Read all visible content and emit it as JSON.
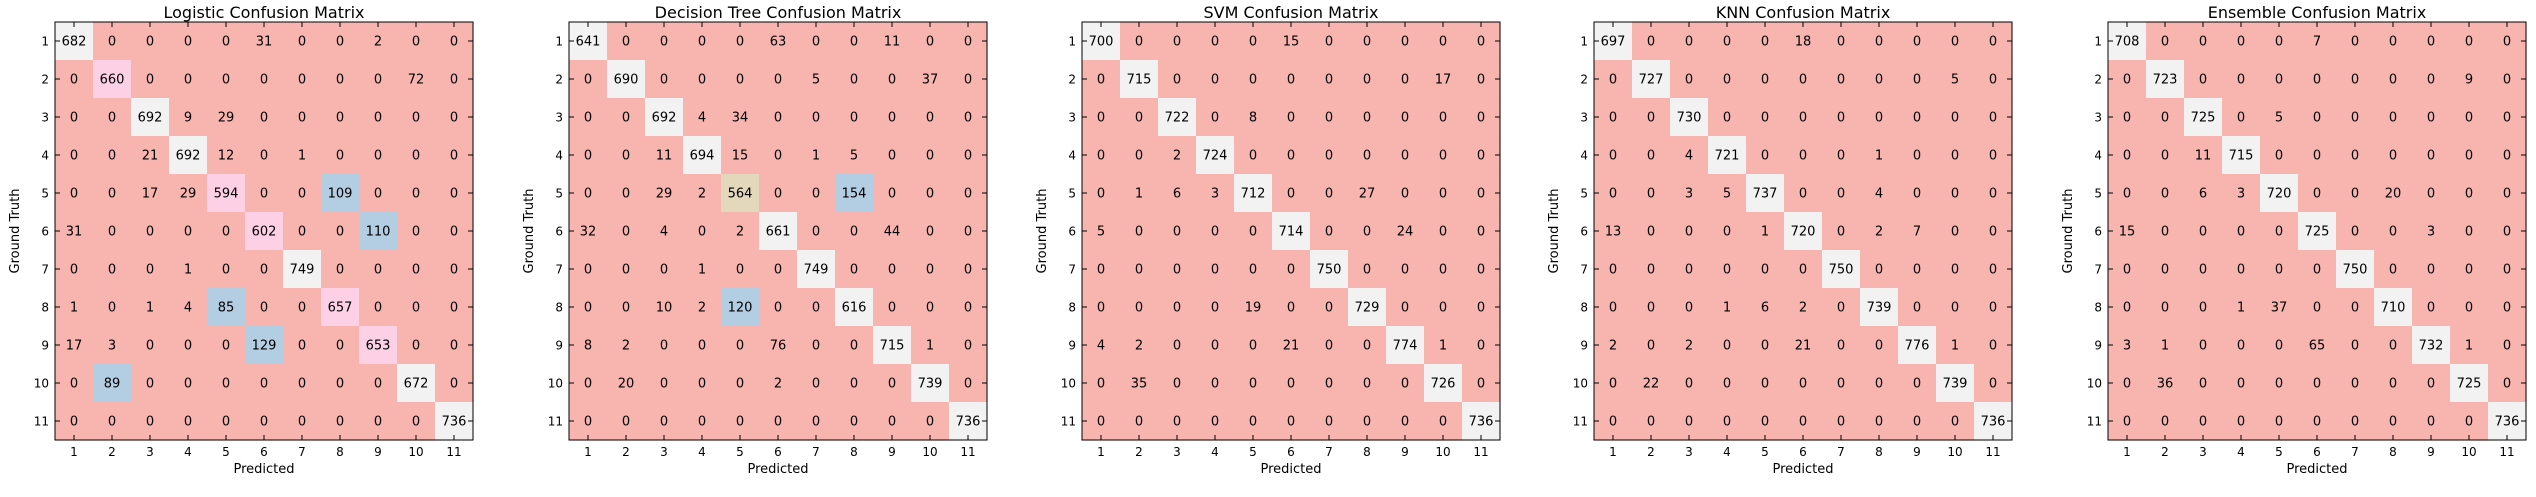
{
  "colors": {
    "pink": "#f8b4ae",
    "diag_light": "#f2f2f2",
    "magenta_light": "#fdd0e6",
    "blue": "#b3cde2",
    "tan": "#e4d8bc",
    "axis": "#000000"
  },
  "chart_data": [
    {
      "type": "heatmap",
      "title": "Logistic Confusion Matrix",
      "xlabel": "Predicted",
      "ylabel": "Ground Truth",
      "x_ticks": [
        "1",
        "2",
        "3",
        "4",
        "5",
        "6",
        "7",
        "8",
        "9",
        "10",
        "11"
      ],
      "y_ticks": [
        "1",
        "2",
        "3",
        "4",
        "5",
        "6",
        "7",
        "8",
        "9",
        "10",
        "11"
      ],
      "grid": false,
      "matrix": [
        [
          682,
          0,
          0,
          0,
          0,
          31,
          0,
          0,
          2,
          0,
          0
        ],
        [
          0,
          660,
          0,
          0,
          0,
          0,
          0,
          0,
          0,
          72,
          0
        ],
        [
          0,
          0,
          692,
          9,
          29,
          0,
          0,
          0,
          0,
          0,
          0
        ],
        [
          0,
          0,
          21,
          692,
          12,
          0,
          1,
          0,
          0,
          0,
          0
        ],
        [
          0,
          0,
          17,
          29,
          594,
          0,
          0,
          109,
          0,
          0,
          0
        ],
        [
          31,
          0,
          0,
          0,
          0,
          602,
          0,
          0,
          110,
          0,
          0
        ],
        [
          0,
          0,
          0,
          1,
          0,
          0,
          749,
          0,
          0,
          0,
          0
        ],
        [
          1,
          0,
          1,
          4,
          85,
          0,
          0,
          657,
          0,
          0,
          0
        ],
        [
          17,
          3,
          0,
          0,
          0,
          129,
          0,
          0,
          653,
          0,
          0
        ],
        [
          0,
          89,
          0,
          0,
          0,
          0,
          0,
          0,
          0,
          672,
          0
        ],
        [
          0,
          0,
          0,
          0,
          0,
          0,
          0,
          0,
          0,
          0,
          736
        ]
      ],
      "highlights": [
        {
          "row": 2,
          "col": 2,
          "color": "magenta_light"
        },
        {
          "row": 5,
          "col": 5,
          "color": "magenta_light"
        },
        {
          "row": 6,
          "col": 6,
          "color": "magenta_light"
        },
        {
          "row": 8,
          "col": 8,
          "color": "magenta_light"
        },
        {
          "row": 9,
          "col": 9,
          "color": "magenta_light"
        },
        {
          "row": 5,
          "col": 8,
          "color": "blue"
        },
        {
          "row": 6,
          "col": 9,
          "color": "blue"
        },
        {
          "row": 8,
          "col": 5,
          "color": "blue"
        },
        {
          "row": 9,
          "col": 6,
          "color": "blue"
        },
        {
          "row": 10,
          "col": 2,
          "color": "blue"
        }
      ]
    },
    {
      "type": "heatmap",
      "title": "Decision Tree Confusion Matrix",
      "xlabel": "Predicted",
      "ylabel": "Ground Truth",
      "x_ticks": [
        "1",
        "2",
        "3",
        "4",
        "5",
        "6",
        "7",
        "8",
        "9",
        "10",
        "11"
      ],
      "y_ticks": [
        "1",
        "2",
        "3",
        "4",
        "5",
        "6",
        "7",
        "8",
        "9",
        "10",
        "11"
      ],
      "grid": false,
      "matrix": [
        [
          641,
          0,
          0,
          0,
          0,
          63,
          0,
          0,
          11,
          0,
          0
        ],
        [
          0,
          690,
          0,
          0,
          0,
          0,
          5,
          0,
          0,
          37,
          0
        ],
        [
          0,
          0,
          692,
          4,
          34,
          0,
          0,
          0,
          0,
          0,
          0
        ],
        [
          0,
          0,
          11,
          694,
          15,
          0,
          1,
          5,
          0,
          0,
          0
        ],
        [
          0,
          0,
          29,
          2,
          564,
          0,
          0,
          154,
          0,
          0,
          0
        ],
        [
          32,
          0,
          4,
          0,
          2,
          661,
          0,
          0,
          44,
          0,
          0
        ],
        [
          0,
          0,
          0,
          1,
          0,
          0,
          749,
          0,
          0,
          0,
          0
        ],
        [
          0,
          0,
          10,
          2,
          120,
          0,
          0,
          616,
          0,
          0,
          0
        ],
        [
          8,
          2,
          0,
          0,
          0,
          76,
          0,
          0,
          715,
          1,
          0
        ],
        [
          0,
          20,
          0,
          0,
          0,
          2,
          0,
          0,
          0,
          739,
          0
        ],
        [
          0,
          0,
          0,
          0,
          0,
          0,
          0,
          0,
          0,
          0,
          736
        ]
      ],
      "highlights": [
        {
          "row": 5,
          "col": 5,
          "color": "tan"
        },
        {
          "row": 5,
          "col": 8,
          "color": "blue"
        },
        {
          "row": 8,
          "col": 5,
          "color": "blue"
        }
      ]
    },
    {
      "type": "heatmap",
      "title": "SVM Confusion Matrix",
      "xlabel": "Predicted",
      "ylabel": "Ground Truth",
      "x_ticks": [
        "1",
        "2",
        "3",
        "4",
        "5",
        "6",
        "7",
        "8",
        "9",
        "10",
        "11"
      ],
      "y_ticks": [
        "1",
        "2",
        "3",
        "4",
        "5",
        "6",
        "7",
        "8",
        "9",
        "10",
        "11"
      ],
      "grid": false,
      "matrix": [
        [
          700,
          0,
          0,
          0,
          0,
          15,
          0,
          0,
          0,
          0,
          0
        ],
        [
          0,
          715,
          0,
          0,
          0,
          0,
          0,
          0,
          0,
          17,
          0
        ],
        [
          0,
          0,
          722,
          0,
          8,
          0,
          0,
          0,
          0,
          0,
          0
        ],
        [
          0,
          0,
          2,
          724,
          0,
          0,
          0,
          0,
          0,
          0,
          0
        ],
        [
          0,
          1,
          6,
          3,
          712,
          0,
          0,
          27,
          0,
          0,
          0
        ],
        [
          5,
          0,
          0,
          0,
          0,
          714,
          0,
          0,
          24,
          0,
          0
        ],
        [
          0,
          0,
          0,
          0,
          0,
          0,
          750,
          0,
          0,
          0,
          0
        ],
        [
          0,
          0,
          0,
          0,
          19,
          0,
          0,
          729,
          0,
          0,
          0
        ],
        [
          4,
          2,
          0,
          0,
          0,
          21,
          0,
          0,
          774,
          1,
          0
        ],
        [
          0,
          35,
          0,
          0,
          0,
          0,
          0,
          0,
          0,
          726,
          0
        ],
        [
          0,
          0,
          0,
          0,
          0,
          0,
          0,
          0,
          0,
          0,
          736
        ]
      ],
      "highlights": []
    },
    {
      "type": "heatmap",
      "title": "KNN Confusion Matrix",
      "xlabel": "Predicted",
      "ylabel": "Ground Truth",
      "x_ticks": [
        "1",
        "2",
        "3",
        "4",
        "5",
        "6",
        "7",
        "8",
        "9",
        "10",
        "11"
      ],
      "y_ticks": [
        "1",
        "2",
        "3",
        "4",
        "5",
        "6",
        "7",
        "8",
        "9",
        "10",
        "11"
      ],
      "grid": false,
      "matrix": [
        [
          697,
          0,
          0,
          0,
          0,
          18,
          0,
          0,
          0,
          0,
          0
        ],
        [
          0,
          727,
          0,
          0,
          0,
          0,
          0,
          0,
          0,
          5,
          0
        ],
        [
          0,
          0,
          730,
          0,
          0,
          0,
          0,
          0,
          0,
          0,
          0
        ],
        [
          0,
          0,
          4,
          721,
          0,
          0,
          0,
          1,
          0,
          0,
          0
        ],
        [
          0,
          0,
          3,
          5,
          737,
          0,
          0,
          4,
          0,
          0,
          0
        ],
        [
          13,
          0,
          0,
          0,
          1,
          720,
          0,
          2,
          7,
          0,
          0
        ],
        [
          0,
          0,
          0,
          0,
          0,
          0,
          750,
          0,
          0,
          0,
          0
        ],
        [
          0,
          0,
          0,
          1,
          6,
          2,
          0,
          739,
          0,
          0,
          0
        ],
        [
          2,
          0,
          2,
          0,
          0,
          21,
          0,
          0,
          776,
          1,
          0
        ],
        [
          0,
          22,
          0,
          0,
          0,
          0,
          0,
          0,
          0,
          739,
          0
        ],
        [
          0,
          0,
          0,
          0,
          0,
          0,
          0,
          0,
          0,
          0,
          736
        ]
      ],
      "highlights": []
    },
    {
      "type": "heatmap",
      "title": "Ensemble Confusion Matrix",
      "xlabel": "Predicted",
      "ylabel": "Ground Truth",
      "x_ticks": [
        "1",
        "2",
        "3",
        "4",
        "5",
        "6",
        "7",
        "8",
        "9",
        "10",
        "11"
      ],
      "y_ticks": [
        "1",
        "2",
        "3",
        "4",
        "5",
        "6",
        "7",
        "8",
        "9",
        "10",
        "11"
      ],
      "grid": false,
      "matrix": [
        [
          708,
          0,
          0,
          0,
          0,
          7,
          0,
          0,
          0,
          0,
          0
        ],
        [
          0,
          723,
          0,
          0,
          0,
          0,
          0,
          0,
          0,
          9,
          0
        ],
        [
          0,
          0,
          725,
          0,
          5,
          0,
          0,
          0,
          0,
          0,
          0
        ],
        [
          0,
          0,
          11,
          715,
          0,
          0,
          0,
          0,
          0,
          0,
          0
        ],
        [
          0,
          0,
          6,
          3,
          720,
          0,
          0,
          20,
          0,
          0,
          0
        ],
        [
          15,
          0,
          0,
          0,
          0,
          725,
          0,
          0,
          3,
          0,
          0
        ],
        [
          0,
          0,
          0,
          0,
          0,
          0,
          750,
          0,
          0,
          0,
          0
        ],
        [
          0,
          0,
          0,
          1,
          37,
          0,
          0,
          710,
          0,
          0,
          0
        ],
        [
          3,
          1,
          0,
          0,
          0,
          65,
          0,
          0,
          732,
          1,
          0
        ],
        [
          0,
          36,
          0,
          0,
          0,
          0,
          0,
          0,
          0,
          725,
          0
        ],
        [
          0,
          0,
          0,
          0,
          0,
          0,
          0,
          0,
          0,
          0,
          736
        ]
      ],
      "highlights": []
    }
  ]
}
